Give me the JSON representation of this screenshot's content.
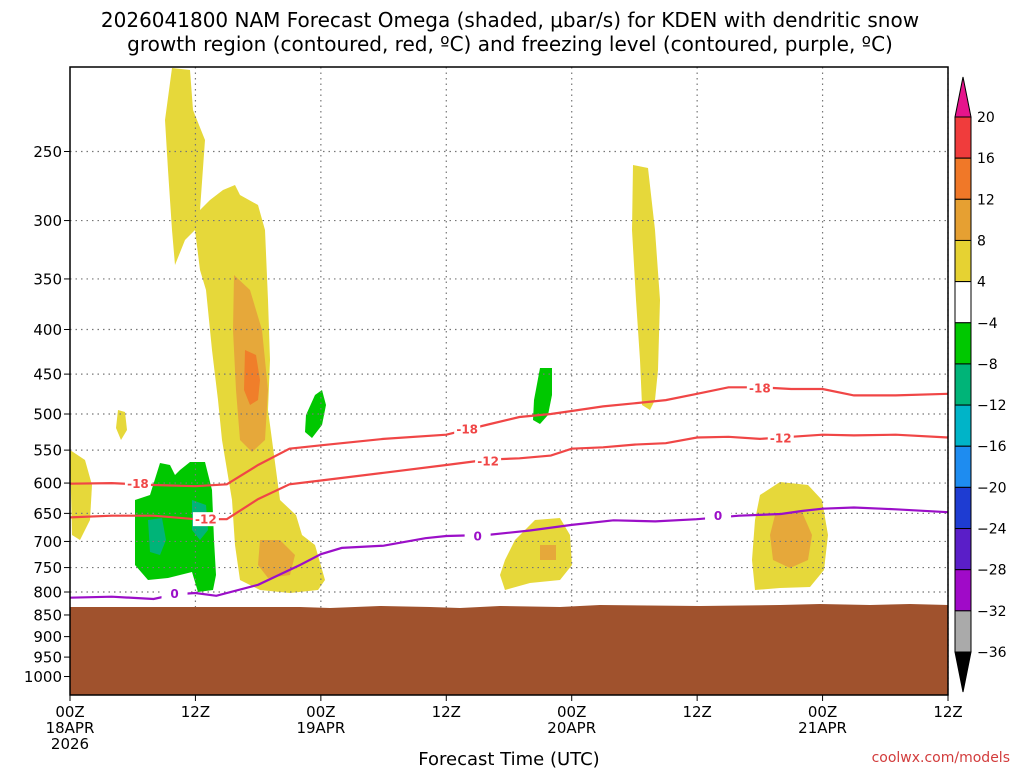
{
  "chart_data": {
    "type": "time-height cross-section",
    "title_lines": [
      "2026041800 NAM Forecast Omega (shaded, μbar/s) for KDEN with dendritic snow",
      "growth region (contoured, red, ºC) and freezing level (contoured, purple, ºC)"
    ],
    "xlabel": "Forecast Time (UTC)",
    "x_ticks": [
      {
        "hour": 0,
        "lines": [
          "00Z",
          "18APR",
          "2026"
        ]
      },
      {
        "hour": 12,
        "lines": [
          "12Z"
        ]
      },
      {
        "hour": 24,
        "lines": [
          "00Z",
          "19APR"
        ]
      },
      {
        "hour": 36,
        "lines": [
          "12Z"
        ]
      },
      {
        "hour": 48,
        "lines": [
          "00Z",
          "20APR"
        ]
      },
      {
        "hour": 60,
        "lines": [
          "12Z"
        ]
      },
      {
        "hour": 72,
        "lines": [
          "00Z",
          "21APR"
        ]
      },
      {
        "hour": 84,
        "lines": [
          "12Z"
        ]
      }
    ],
    "xlim_hours": [
      0,
      84
    ],
    "y_scale": "log-pressure",
    "ylim_mb": [
      1050,
      200
    ],
    "y_ticks": [
      250,
      300,
      350,
      400,
      450,
      500,
      550,
      600,
      650,
      700,
      750,
      800,
      850,
      900,
      950,
      1000
    ],
    "grid": true,
    "terrain_top_mb": 835,
    "colorbar": {
      "labels": [
        "20",
        "16",
        "12",
        "8",
        "4",
        "−4",
        "−8",
        "−12",
        "−16",
        "−20",
        "−24",
        "−28",
        "−32",
        "−36"
      ],
      "colors": [
        "#f03c3c",
        "#f07828",
        "#e6a032",
        "#e6d232",
        "#ffffff",
        "#00c800",
        "#00b478",
        "#00b4c8",
        "#1e8cf0",
        "#1e3cd2",
        "#5a1ec8",
        "#a00ac8",
        "#aaaaaa"
      ],
      "top_color": "#e6148c",
      "bottom_color": "#000000"
    },
    "series": [
      {
        "name": "−18",
        "color": "#f04646",
        "label": "-18",
        "points": [
          [
            0,
            601
          ],
          [
            4,
            600
          ],
          [
            8,
            603
          ],
          [
            12,
            605
          ],
          [
            15,
            602
          ],
          [
            18,
            572
          ],
          [
            21,
            548
          ],
          [
            24,
            543
          ],
          [
            30,
            534
          ],
          [
            36,
            528
          ],
          [
            40,
            514
          ],
          [
            43,
            504
          ],
          [
            46,
            500
          ],
          [
            48,
            496
          ],
          [
            51,
            490
          ],
          [
            54,
            486
          ],
          [
            57,
            482
          ],
          [
            60,
            474
          ],
          [
            63,
            466
          ],
          [
            66,
            466
          ],
          [
            69,
            468
          ],
          [
            72,
            468
          ],
          [
            75,
            476
          ],
          [
            79,
            476
          ],
          [
            84,
            474
          ]
        ]
      },
      {
        "name": "−12",
        "color": "#f04646",
        "label": "-12",
        "points": [
          [
            0,
            657
          ],
          [
            4,
            654
          ],
          [
            8,
            654
          ],
          [
            12,
            660
          ],
          [
            15,
            660
          ],
          [
            18,
            626
          ],
          [
            21,
            602
          ],
          [
            24,
            596
          ],
          [
            30,
            584
          ],
          [
            36,
            572
          ],
          [
            40,
            564
          ],
          [
            43,
            562
          ],
          [
            46,
            558
          ],
          [
            48,
            548
          ],
          [
            51,
            546
          ],
          [
            54,
            542
          ],
          [
            57,
            540
          ],
          [
            60,
            532
          ],
          [
            63,
            531
          ],
          [
            66,
            534
          ],
          [
            69,
            531
          ],
          [
            72,
            528
          ],
          [
            75,
            529
          ],
          [
            79,
            528
          ],
          [
            84,
            532
          ]
        ]
      },
      {
        "name": "0",
        "color": "#9b0fc8",
        "label": "0",
        "points": [
          [
            0,
            812
          ],
          [
            4,
            810
          ],
          [
            8,
            815
          ],
          [
            10,
            805
          ],
          [
            12,
            802
          ],
          [
            14,
            808
          ],
          [
            18,
            785
          ],
          [
            22,
            745
          ],
          [
            24,
            724
          ],
          [
            26,
            712
          ],
          [
            30,
            708
          ],
          [
            34,
            694
          ],
          [
            36,
            690
          ],
          [
            40,
            688
          ],
          [
            44,
            680
          ],
          [
            48,
            670
          ],
          [
            52,
            662
          ],
          [
            56,
            664
          ],
          [
            60,
            660
          ],
          [
            64,
            654
          ],
          [
            68,
            651
          ],
          [
            70,
            646
          ],
          [
            72,
            642
          ],
          [
            75,
            640
          ],
          [
            79,
            643
          ],
          [
            84,
            648
          ]
        ]
      }
    ]
  },
  "credit": "coolwx.com/models"
}
